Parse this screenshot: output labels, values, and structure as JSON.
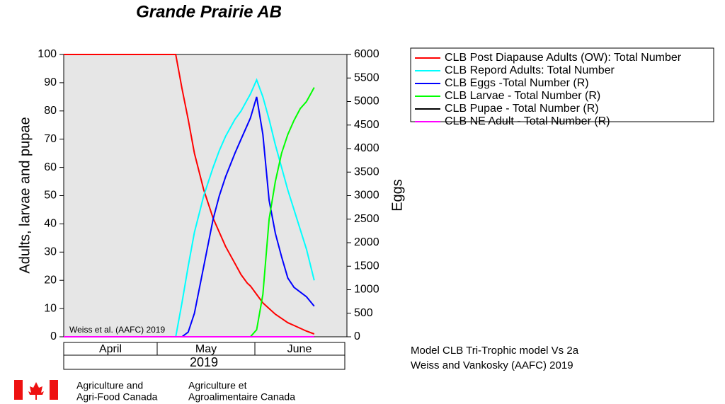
{
  "chart_data": {
    "type": "line",
    "title": "Grande Prairie AB",
    "ylabel": "Adults, larvae and pupae",
    "y2label": "Eggs",
    "categories": [
      "April",
      "May",
      "June"
    ],
    "year": "2019",
    "annotation": "Weiss et al. (AAFC) 2019",
    "note": [
      "Model CLB Tri-Trophic model Vs 2a",
      "Weiss and Vankosky  (AAFC) 2019"
    ],
    "footer": [
      "Agriculture and",
      "Agri-Food Canada",
      "Agriculture et",
      "Agroalimentaire Canada"
    ],
    "x": [
      0,
      10,
      20,
      30,
      36,
      38,
      40,
      42,
      45,
      48,
      50,
      52,
      55,
      57,
      59,
      60,
      62,
      64,
      66,
      68,
      70,
      72,
      74,
      76,
      78,
      80.5
    ],
    "xlim": [
      0,
      91
    ],
    "ylim": [
      0,
      100
    ],
    "yticks": [
      0,
      10,
      20,
      30,
      40,
      50,
      60,
      70,
      80,
      90,
      100
    ],
    "y2lim": [
      0,
      6000
    ],
    "y2ticks": [
      0,
      500,
      1000,
      1500,
      2000,
      2500,
      3000,
      3500,
      4000,
      4500,
      5000,
      5500,
      6000
    ],
    "series": [
      {
        "name": "CLB Post Diapause Adults (OW): Total Number",
        "color": "#ff0000",
        "axis": "y",
        "values": [
          100,
          100,
          100,
          100,
          100,
          88,
          77,
          65,
          52,
          42,
          37,
          32,
          26,
          22,
          19,
          18,
          15,
          12,
          10,
          8,
          6.5,
          5,
          4,
          3,
          2,
          1
        ]
      },
      {
        "name": "CLB  Repord Adults: Total Number",
        "color": "#00ffff",
        "axis": "y",
        "values": [
          0,
          0,
          0,
          0,
          0,
          12,
          25,
          37,
          50,
          60,
          66,
          71,
          77,
          80,
          84,
          86,
          91,
          85,
          77,
          68,
          60,
          52,
          45,
          38,
          31,
          20
        ]
      },
      {
        "name": "CLB Eggs -Total Number (R)",
        "color": "#0000ff",
        "axis": "y2",
        "values": [
          0,
          0,
          0,
          0,
          0,
          0,
          100,
          500,
          1500,
          2500,
          3000,
          3400,
          3900,
          4200,
          4500,
          4650,
          5100,
          4300,
          2900,
          2200,
          1700,
          1250,
          1050,
          950,
          850,
          650
        ]
      },
      {
        "name": "CLB Larvae - Total Number (R)",
        "color": "#00ff00",
        "axis": "y2",
        "values": [
          0,
          0,
          0,
          0,
          0,
          0,
          0,
          0,
          0,
          0,
          0,
          0,
          0,
          0,
          0,
          0,
          150,
          900,
          2500,
          3300,
          3900,
          4300,
          4600,
          4850,
          5000,
          5300
        ]
      },
      {
        "name": "CLB Pupae - Total Number (R)",
        "color": "#000000",
        "axis": "y2",
        "values": [
          0,
          0,
          0,
          0,
          0,
          0,
          0,
          0,
          0,
          0,
          0,
          0,
          0,
          0,
          0,
          0,
          0,
          0,
          0,
          0,
          0,
          0,
          0,
          0,
          0,
          0
        ]
      },
      {
        "name": "CLB NE Adult - Total Number (R)",
        "color": "#ff00ff",
        "axis": "y2",
        "values": [
          0,
          0,
          0,
          0,
          0,
          0,
          0,
          0,
          0,
          0,
          0,
          0,
          0,
          0,
          0,
          0,
          0,
          0,
          0,
          0,
          0,
          0,
          0,
          0,
          0,
          0
        ]
      }
    ]
  }
}
